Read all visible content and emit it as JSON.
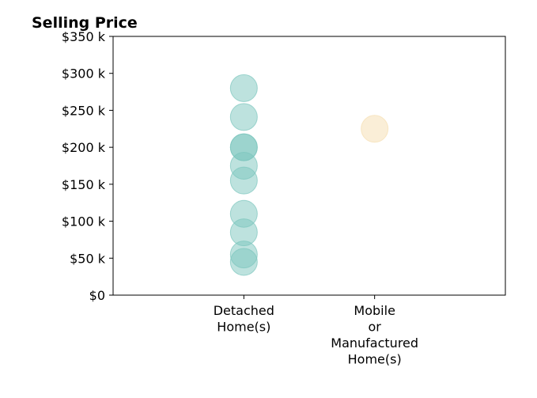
{
  "chart_data": {
    "type": "scatter",
    "title": "Selling Price",
    "xlabel": "",
    "ylabel": "",
    "categories": [
      [
        "Detached",
        "Home(s)"
      ],
      [
        "Mobile",
        "or",
        "Manufactured",
        "Home(s)"
      ]
    ],
    "xlim": [
      -1,
      2
    ],
    "ylim": [
      0,
      350000
    ],
    "yticks": [
      0,
      50000,
      100000,
      150000,
      200000,
      250000,
      300000,
      350000
    ],
    "ytick_labels": [
      "$0",
      "$50 k",
      "$100 k",
      "$150 k",
      "$200 k",
      "$250 k",
      "$300 k",
      "$350 k"
    ],
    "grid": false,
    "series": [
      {
        "category_index": 0,
        "color": "#7cc6bd",
        "values": [
          280000,
          241000,
          200000,
          200000,
          175000,
          155000,
          110000,
          85000,
          55000,
          45000
        ]
      },
      {
        "category_index": 1,
        "color": "#f5deb0",
        "values": [
          225000
        ]
      }
    ]
  }
}
